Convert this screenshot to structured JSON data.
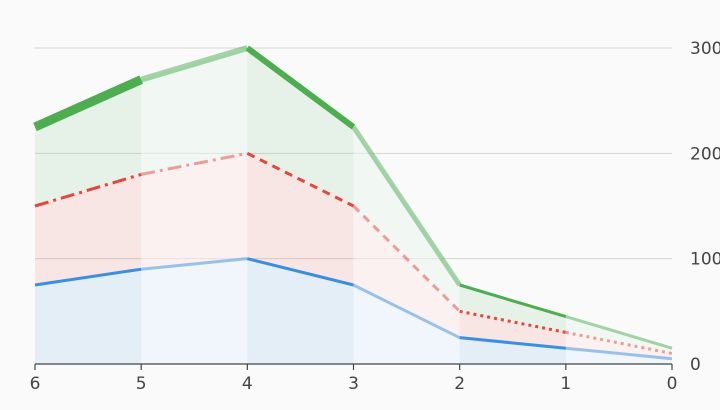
{
  "chart_data": {
    "type": "area",
    "x": [
      6,
      5,
      4,
      3,
      2,
      1,
      0
    ],
    "xlim": [
      6,
      0
    ],
    "ylim": [
      0,
      300
    ],
    "yticks": [
      0,
      100,
      200,
      300
    ],
    "y_axis_position": "right",
    "grid": true,
    "legend": "none",
    "series": [
      {
        "values": [
          75,
          90,
          100,
          75,
          25,
          15,
          5
        ],
        "color": "#3b8fe0",
        "line_style": "solid"
      },
      {
        "values": [
          150,
          180,
          200,
          150,
          50,
          30,
          10
        ],
        "color": "#e4473b",
        "line_style": "dashed"
      },
      {
        "values": [
          225,
          270,
          300,
          225,
          75,
          45,
          15
        ],
        "color": "#4cae4f",
        "line_style": "solid-thick"
      }
    ]
  }
}
